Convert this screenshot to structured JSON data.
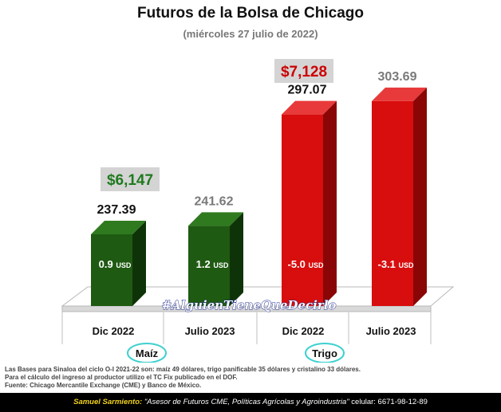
{
  "title": "Futuros de la Bolsa de Chicago",
  "subtitle": "(miércoles 27 julio de 2022)",
  "watermark": "#AlguienTieneQueDecirlo",
  "chart_data": {
    "type": "bar",
    "categories": [
      "Dic 2022",
      "Julio 2023",
      "Dic 2022",
      "Julio 2023"
    ],
    "values": [
      237.39,
      241.62,
      297.07,
      303.69
    ],
    "value_labels": [
      "237.39",
      "241.62",
      "297.07",
      "303.69"
    ],
    "bar_labels": [
      "0.9",
      "1.2",
      "-5.0",
      "-3.1"
    ],
    "bar_label_unit": "USD",
    "groups": [
      {
        "name": "Maíz",
        "price_label": "$6,147",
        "color": "#1f5a12",
        "price_color": "#1f7a1f"
      },
      {
        "name": "Trigo",
        "price_label": "$7,128",
        "color": "#d80d0d",
        "price_color": "#cc0000"
      }
    ],
    "ylim": [
      0,
      320
    ],
    "grid": false
  },
  "notes": [
    "Las Bases para Sinaloa del ciclo O-I 2021-22 son: maíz 49 dólares, trigo panificable 35 dólares y cristalino 33 dólares.",
    "Para el cálculo del ingreso al productor utilizo el TC Fix publicado en el DOF.",
    "Fuente: Chicago Mercantile Exchange (CME) y Banco de México."
  ],
  "footer": {
    "name": "Samuel Sarmiento:",
    "description": "\"Asesor de Futuros CME, Políticas Agrícolas y Agroindustria\"",
    "phone": "celular: 6671-98-12-89"
  }
}
